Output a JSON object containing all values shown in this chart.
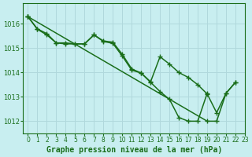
{
  "title": "Graphe pression niveau de la mer (hPa)",
  "background_color": "#c8eef0",
  "grid_color": "#b0d8dc",
  "line_color": "#1a6e1a",
  "xlim": [
    -0.5,
    23
  ],
  "ylim": [
    1011.5,
    1016.85
  ],
  "yticks": [
    1012,
    1013,
    1014,
    1015,
    1016
  ],
  "xticks": [
    0,
    1,
    2,
    3,
    4,
    5,
    6,
    7,
    8,
    9,
    10,
    11,
    12,
    13,
    14,
    15,
    16,
    17,
    18,
    19,
    20,
    21,
    22,
    23
  ],
  "series1_x": [
    0,
    1,
    2,
    3,
    4,
    5,
    6,
    7,
    8,
    9,
    10,
    11,
    12,
    13,
    14,
    15,
    16,
    17,
    18,
    19,
    20,
    21,
    22
  ],
  "series1_y": [
    1016.3,
    1015.8,
    1015.6,
    1015.22,
    1015.22,
    1015.18,
    1015.18,
    1015.55,
    1015.3,
    1015.25,
    1014.75,
    1014.15,
    1013.98,
    1013.62,
    1014.65,
    1014.35,
    1014.0,
    1013.8,
    1013.5,
    1013.12,
    1012.35,
    1013.15,
    1013.6
  ],
  "series2_x": [
    0,
    1,
    2,
    3,
    4,
    5,
    6,
    7,
    8,
    9,
    10,
    11,
    12,
    13,
    14,
    15,
    16,
    17,
    18,
    19
  ],
  "series2_y": [
    1016.3,
    1015.78,
    1015.55,
    1015.22,
    1015.18,
    1015.18,
    1015.18,
    1015.55,
    1015.28,
    1015.2,
    1014.68,
    1014.1,
    1013.98,
    1013.6,
    1013.22,
    1012.9,
    1012.15,
    1012.0,
    1012.0,
    1013.15
  ],
  "series3_x": [
    0,
    19,
    20,
    21,
    22
  ],
  "series3_y": [
    1016.3,
    1012.0,
    1012.0,
    1013.15,
    1013.6
  ],
  "markersize": 4,
  "linewidth": 1.1,
  "marker": "+"
}
